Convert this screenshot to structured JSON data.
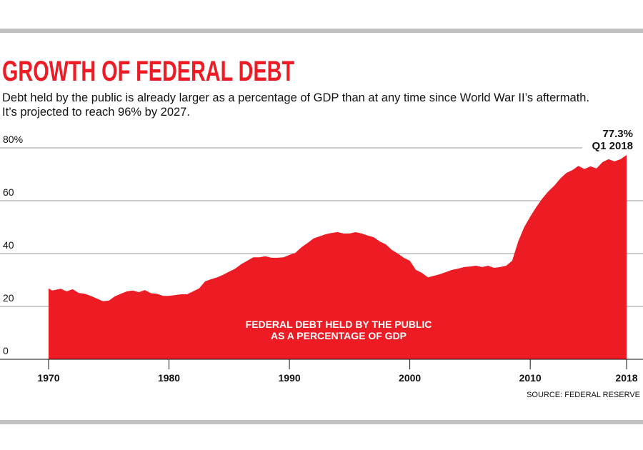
{
  "title": "GROWTH OF FEDERAL DEBT",
  "subtitle_lines": [
    "Debt held by the public is already larger as a percentage of GDP than at any time since World War II’s aftermath.",
    "It’s projected to reach 96% by 2027."
  ],
  "source": "SOURCE: FEDERAL RESERVE",
  "colors": {
    "accent": "#ed1c24",
    "rule": "#c1c1c1",
    "grid": "#9a9a9a"
  },
  "chart_data": {
    "type": "area",
    "title": "GROWTH OF FEDERAL DEBT",
    "series_label_lines": [
      "FEDERAL DEBT HELD BY THE PUBLIC",
      "AS A PERCENTAGE OF GDP"
    ],
    "annotation": {
      "value": "77.3%",
      "period": "Q1 2018"
    },
    "xlim": [
      1970,
      2018.1
    ],
    "ylim": [
      0,
      80
    ],
    "grid": true,
    "x_ticks": [
      1970,
      1980,
      1990,
      2000,
      2010,
      2018
    ],
    "x_tick_labels": [
      "1970",
      "1980",
      "1990",
      "2000",
      "2010",
      "2018"
    ],
    "y_ticks": [
      0,
      20,
      40,
      60,
      80
    ],
    "y_tick_labels": [
      "0",
      "20",
      "40",
      "60",
      "80%"
    ],
    "x": [
      1970,
      1970.3,
      1971,
      1971.5,
      1972,
      1972.5,
      1973,
      1973.5,
      1974,
      1974.5,
      1975,
      1975.5,
      1976,
      1976.5,
      1977,
      1977.5,
      1978,
      1978.5,
      1979,
      1979.5,
      1980,
      1980.5,
      1981,
      1981.5,
      1982,
      1982.5,
      1983,
      1983.5,
      1984,
      1984.5,
      1985,
      1985.5,
      1986,
      1986.5,
      1987,
      1987.5,
      1988,
      1988.5,
      1989,
      1989.5,
      1990,
      1990.5,
      1991,
      1991.5,
      1992,
      1992.5,
      1993,
      1993.5,
      1994,
      1994.5,
      1995,
      1995.5,
      1996,
      1996.5,
      1997,
      1997.5,
      1998,
      1998.5,
      1999,
      1999.5,
      2000,
      2000.5,
      2001,
      2001.5,
      2002,
      2002.5,
      2003,
      2003.5,
      2004,
      2004.5,
      2005,
      2005.5,
      2006,
      2006.5,
      2007,
      2007.5,
      2008,
      2008.5,
      2009,
      2009.5,
      2010,
      2010.5,
      2011,
      2011.5,
      2012,
      2012.5,
      2013,
      2013.5,
      2014,
      2014.5,
      2015,
      2015.5,
      2016,
      2016.5,
      2017,
      2017.5,
      2018
    ],
    "y": [
      26.8,
      26.0,
      26.7,
      25.7,
      26.5,
      25.1,
      24.8,
      24.0,
      23.0,
      22.0,
      22.2,
      23.8,
      24.8,
      25.7,
      26.0,
      25.4,
      26.2,
      25.0,
      24.8,
      24.0,
      24.0,
      24.3,
      24.6,
      24.6,
      25.7,
      26.8,
      29.5,
      30.3,
      31.0,
      32.0,
      33.2,
      34.3,
      36.0,
      37.3,
      38.6,
      38.6,
      39.0,
      38.4,
      38.4,
      38.6,
      39.5,
      40.3,
      42.4,
      44.0,
      45.7,
      46.5,
      47.3,
      47.8,
      48.1,
      47.6,
      47.6,
      48.1,
      47.6,
      46.8,
      46.2,
      44.6,
      43.5,
      41.4,
      40.0,
      38.4,
      37.3,
      33.8,
      32.7,
      31.0,
      31.6,
      32.2,
      33.0,
      33.8,
      34.3,
      34.9,
      35.1,
      35.4,
      34.9,
      35.4,
      34.6,
      34.9,
      35.4,
      37.3,
      44.6,
      50.0,
      54.0,
      57.6,
      60.8,
      63.5,
      65.7,
      68.4,
      70.5,
      71.6,
      73.2,
      72.0,
      73.0,
      72.2,
      74.6,
      75.7,
      74.9,
      75.7,
      77.3
    ]
  }
}
